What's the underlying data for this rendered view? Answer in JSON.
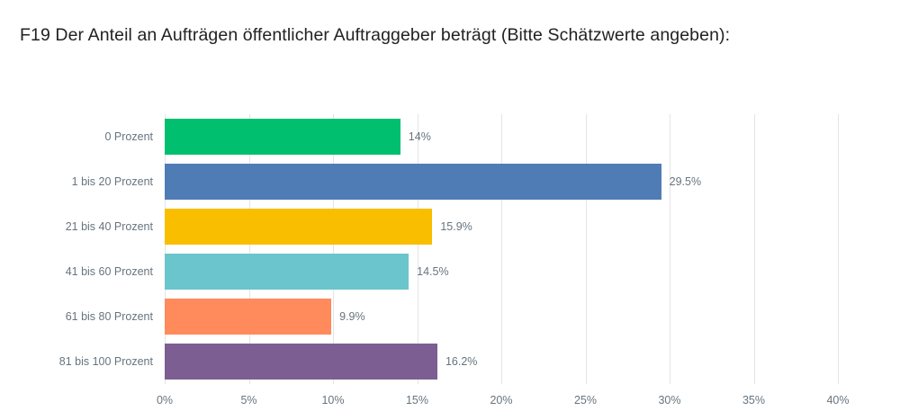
{
  "header": {
    "title": "F19 Der Anteil an Aufträgen öffentlicher Auftraggeber beträgt (Bitte Schätzwerte angeben):"
  },
  "chart_data": {
    "type": "bar",
    "orientation": "horizontal",
    "title": "F19 Der Anteil an Aufträgen öffentlicher Auftraggeber beträgt (Bitte Schätzwerte angeben):",
    "categories": [
      "0 Prozent",
      "1 bis 20 Prozent",
      "21 bis 40 Prozent",
      "41 bis 60 Prozent",
      "61 bis 80 Prozent",
      "81 bis 100 Prozent"
    ],
    "values": [
      14,
      29.5,
      15.9,
      14.5,
      9.9,
      16.2
    ],
    "value_labels": [
      "14%",
      "29.5%",
      "15.9%",
      "14.5%",
      "9.9%",
      "16.2%"
    ],
    "bar_colors": [
      "#00bf6f",
      "#507cb5",
      "#f9be00",
      "#6bc5cc",
      "#ff8a5b",
      "#7d5e92"
    ],
    "xlabel": "",
    "ylabel": "",
    "xlim": [
      0,
      40
    ],
    "x_tick_values": [
      0,
      5,
      10,
      15,
      20,
      25,
      30,
      35,
      40
    ],
    "x_tick_labels": [
      "0%",
      "5%",
      "10%",
      "15%",
      "20%",
      "25%",
      "30%",
      "35%",
      "40%"
    ],
    "grid": true,
    "legend": false
  },
  "colors": {
    "grid": "#e4e4e7",
    "axis_text": "#67747e",
    "title_text": "#222222",
    "background": "#ffffff"
  }
}
